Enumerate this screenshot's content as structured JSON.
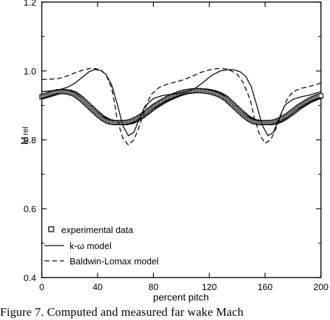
{
  "chart_data": {
    "type": "line",
    "xlabel": "percent pitch",
    "ylabel": "M",
    "ylabel_sub": "rel",
    "xlim": [
      0,
      200
    ],
    "ylim": [
      0.4,
      1.2
    ],
    "xticks": [
      "0",
      "40",
      "80",
      "120",
      "160",
      "200"
    ],
    "yticks": [
      "0.4",
      "0.6",
      "0.8",
      "1.0",
      "1.2"
    ],
    "grid": false,
    "legend_position": "bottom-left",
    "series": [
      {
        "name": "experimental data",
        "style": "markers",
        "x": [
          0,
          4,
          8,
          12,
          16,
          20,
          24,
          28,
          32,
          36,
          40,
          44,
          48,
          52,
          56,
          60,
          64,
          68,
          72,
          76,
          80,
          84,
          88,
          92,
          96,
          100,
          104,
          108,
          112,
          116,
          120,
          124,
          128,
          132,
          136,
          140,
          144,
          148,
          152,
          156,
          160,
          164,
          168,
          172,
          176,
          180,
          184,
          188,
          192,
          196,
          200
        ],
        "y": [
          0.925,
          0.93,
          0.935,
          0.94,
          0.94,
          0.938,
          0.932,
          0.92,
          0.905,
          0.89,
          0.875,
          0.862,
          0.853,
          0.85,
          0.85,
          0.85,
          0.853,
          0.86,
          0.87,
          0.882,
          0.895,
          0.905,
          0.915,
          0.923,
          0.93,
          0.936,
          0.94,
          0.942,
          0.943,
          0.942,
          0.94,
          0.936,
          0.93,
          0.92,
          0.905,
          0.89,
          0.875,
          0.862,
          0.853,
          0.85,
          0.85,
          0.85,
          0.853,
          0.86,
          0.87,
          0.882,
          0.895,
          0.905,
          0.915,
          0.922,
          0.928
        ]
      },
      {
        "name": "k-ω model",
        "style": "solid",
        "x": [
          0,
          6,
          12,
          18,
          24,
          30,
          34,
          38,
          42,
          46,
          50,
          54,
          58,
          62,
          66,
          70,
          74,
          80,
          86,
          92,
          98,
          104,
          110,
          116,
          122,
          128,
          134,
          138,
          142,
          146,
          150,
          154,
          158,
          162,
          166,
          170,
          174,
          180,
          186,
          192,
          196,
          200
        ],
        "y": [
          0.94,
          0.942,
          0.945,
          0.952,
          0.965,
          0.985,
          0.998,
          1.004,
          1.002,
          0.99,
          0.96,
          0.905,
          0.842,
          0.812,
          0.822,
          0.862,
          0.898,
          0.92,
          0.928,
          0.932,
          0.935,
          0.94,
          0.95,
          0.968,
          0.988,
          1.0,
          1.004,
          1.003,
          0.998,
          0.985,
          0.955,
          0.9,
          0.842,
          0.812,
          0.822,
          0.862,
          0.9,
          0.918,
          0.925,
          0.93,
          0.935,
          0.94
        ]
      },
      {
        "name": "Baldwin-Lomax model",
        "style": "dashed",
        "x": [
          0,
          6,
          12,
          18,
          24,
          30,
          34,
          38,
          42,
          46,
          50,
          52,
          54,
          58,
          62,
          66,
          70,
          74,
          78,
          84,
          90,
          96,
          102,
          108,
          114,
          120,
          126,
          132,
          136,
          140,
          144,
          148,
          150,
          152,
          156,
          160,
          164,
          168,
          172,
          176,
          180,
          186,
          192,
          196,
          200
        ],
        "y": [
          0.975,
          0.976,
          0.978,
          0.985,
          0.995,
          1.003,
          1.007,
          1.007,
          1.003,
          0.99,
          0.95,
          0.91,
          0.86,
          0.805,
          0.785,
          0.8,
          0.84,
          0.89,
          0.93,
          0.952,
          0.962,
          0.968,
          0.975,
          0.985,
          0.996,
          1.003,
          1.007,
          1.006,
          1.0,
          0.99,
          0.968,
          0.93,
          0.905,
          0.868,
          0.815,
          0.79,
          0.8,
          0.835,
          0.88,
          0.92,
          0.94,
          0.95,
          0.955,
          0.96,
          0.965
        ]
      }
    ]
  },
  "caption": "Figure 7.   Computed  and  measured  far  wake  Mach"
}
